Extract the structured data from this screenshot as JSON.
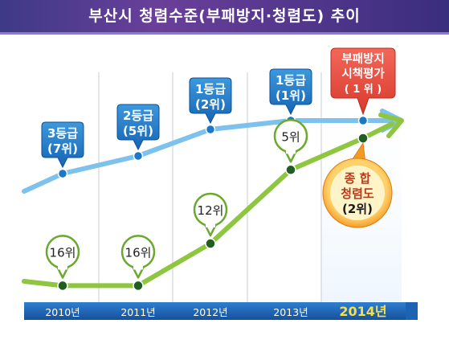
{
  "title": "부산시 청렴수준(부패방지·청렴도) 추이",
  "chart_data": {
    "type": "line",
    "categories": [
      "2010년",
      "2011년",
      "2012년",
      "2013년",
      "2014년"
    ],
    "series": [
      {
        "name": "부패방지 시책평가",
        "values": [
          7,
          5,
          2,
          1,
          1
        ],
        "labels": [
          [
            "3등급",
            "(7위)"
          ],
          [
            "2등급",
            "(5위)"
          ],
          [
            "1등급",
            "(2위)"
          ],
          [
            "1등급",
            "(1위)"
          ],
          [
            "부패방지",
            "시책평가",
            "( 1 위 )"
          ]
        ],
        "color": "#7cc2ec"
      },
      {
        "name": "종합청렴도",
        "values": [
          16,
          16,
          12,
          5,
          2
        ],
        "labels": [
          [
            "16위"
          ],
          [
            "16위"
          ],
          [
            "12위"
          ],
          [
            "5위"
          ],
          [
            "종    합",
            "청렴도",
            "(2위)"
          ]
        ],
        "color": "#8ec63f"
      }
    ],
    "highlight_category": "2014년",
    "colors": {
      "blue_callout": "#1f7fcb",
      "red_callout": "#e84c3d",
      "green_line": "#8ec63f",
      "year_bar": "#1e62b4",
      "highlight_year": "#f5e04a",
      "orange_ring": "#f39a22"
    }
  }
}
